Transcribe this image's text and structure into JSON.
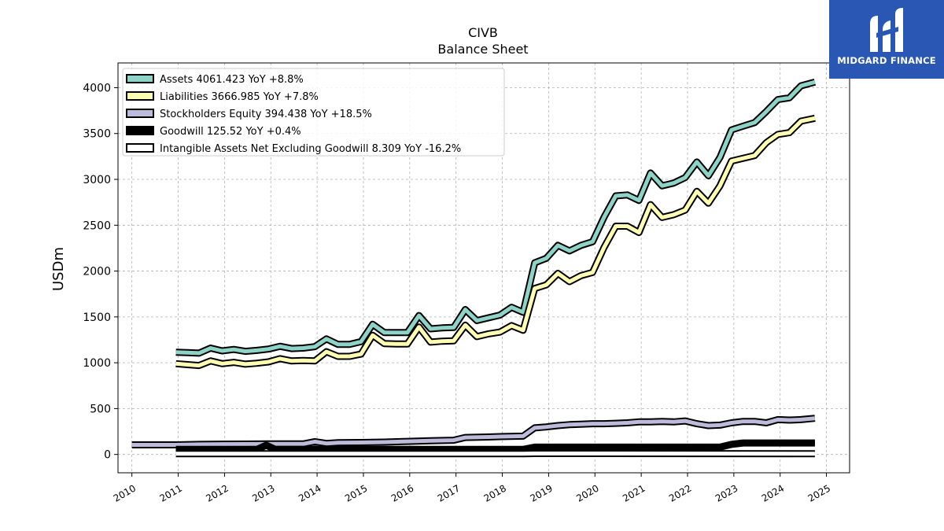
{
  "brand": {
    "name": "MIDGARD FINANCE",
    "bg_color": "#2a57b3",
    "icon": "midgard-logo-icon"
  },
  "chart_data": {
    "type": "line",
    "title": "CIVB",
    "subtitle": "Balance  Sheet",
    "ylabel": "USDm",
    "xlabel": "",
    "xlim": [
      2009.7,
      2025.5
    ],
    "ylim": [
      -200,
      4270
    ],
    "yticks": [
      0,
      500,
      1000,
      1500,
      2000,
      2500,
      3000,
      3500,
      4000
    ],
    "xticks": [
      "2010",
      "2011",
      "2012",
      "2013",
      "2014",
      "2015",
      "2016",
      "2017",
      "2018",
      "2019",
      "2020",
      "2021",
      "2022",
      "2023",
      "2024",
      "2025"
    ],
    "grid": true,
    "legend_position": "top-left",
    "series": [
      {
        "name": "Assets  4061.423 YoY +8.8%",
        "color": "#8dd3c7",
        "points": [
          [
            2010.95,
            1115
          ],
          [
            2011.2,
            1110
          ],
          [
            2011.45,
            1105
          ],
          [
            2011.7,
            1160
          ],
          [
            2011.95,
            1130
          ],
          [
            2012.2,
            1145
          ],
          [
            2012.45,
            1125
          ],
          [
            2012.7,
            1135
          ],
          [
            2012.95,
            1150
          ],
          [
            2013.2,
            1180
          ],
          [
            2013.45,
            1155
          ],
          [
            2013.7,
            1160
          ],
          [
            2013.95,
            1175
          ],
          [
            2014.2,
            1260
          ],
          [
            2014.45,
            1200
          ],
          [
            2014.7,
            1200
          ],
          [
            2014.95,
            1230
          ],
          [
            2015.2,
            1420
          ],
          [
            2015.45,
            1330
          ],
          [
            2015.7,
            1330
          ],
          [
            2015.95,
            1330
          ],
          [
            2016.2,
            1515
          ],
          [
            2016.45,
            1370
          ],
          [
            2016.7,
            1380
          ],
          [
            2016.95,
            1385
          ],
          [
            2017.2,
            1580
          ],
          [
            2017.45,
            1460
          ],
          [
            2017.7,
            1490
          ],
          [
            2017.95,
            1520
          ],
          [
            2018.2,
            1605
          ],
          [
            2018.45,
            1550
          ],
          [
            2018.7,
            2090
          ],
          [
            2018.95,
            2140
          ],
          [
            2019.2,
            2280
          ],
          [
            2019.45,
            2220
          ],
          [
            2019.7,
            2280
          ],
          [
            2019.95,
            2320
          ],
          [
            2020.2,
            2590
          ],
          [
            2020.45,
            2820
          ],
          [
            2020.7,
            2830
          ],
          [
            2020.95,
            2770
          ],
          [
            2021.2,
            3070
          ],
          [
            2021.45,
            2930
          ],
          [
            2021.7,
            2960
          ],
          [
            2021.95,
            3020
          ],
          [
            2022.2,
            3190
          ],
          [
            2022.45,
            3040
          ],
          [
            2022.7,
            3240
          ],
          [
            2022.95,
            3540
          ],
          [
            2023.2,
            3580
          ],
          [
            2023.45,
            3620
          ],
          [
            2023.7,
            3740
          ],
          [
            2023.95,
            3870
          ],
          [
            2024.2,
            3890
          ],
          [
            2024.45,
            4020
          ],
          [
            2024.75,
            4061.423
          ]
        ]
      },
      {
        "name": "Liabilities  3666.985 YoY +7.8%",
        "color": "#ffffb3",
        "points": [
          [
            2010.95,
            990
          ],
          [
            2011.2,
            980
          ],
          [
            2011.45,
            970
          ],
          [
            2011.7,
            1020
          ],
          [
            2011.95,
            990
          ],
          [
            2012.2,
            1005
          ],
          [
            2012.45,
            985
          ],
          [
            2012.7,
            995
          ],
          [
            2012.95,
            1010
          ],
          [
            2013.2,
            1045
          ],
          [
            2013.45,
            1020
          ],
          [
            2013.7,
            1025
          ],
          [
            2013.95,
            1020
          ],
          [
            2014.2,
            1120
          ],
          [
            2014.45,
            1070
          ],
          [
            2014.7,
            1070
          ],
          [
            2014.95,
            1095
          ],
          [
            2015.2,
            1300
          ],
          [
            2015.45,
            1210
          ],
          [
            2015.7,
            1205
          ],
          [
            2015.95,
            1205
          ],
          [
            2016.2,
            1390
          ],
          [
            2016.45,
            1225
          ],
          [
            2016.7,
            1235
          ],
          [
            2016.95,
            1240
          ],
          [
            2017.2,
            1410
          ],
          [
            2017.45,
            1285
          ],
          [
            2017.7,
            1315
          ],
          [
            2017.95,
            1335
          ],
          [
            2018.2,
            1405
          ],
          [
            2018.45,
            1355
          ],
          [
            2018.7,
            1810
          ],
          [
            2018.95,
            1850
          ],
          [
            2019.2,
            1975
          ],
          [
            2019.45,
            1885
          ],
          [
            2019.7,
            1950
          ],
          [
            2019.95,
            1985
          ],
          [
            2020.2,
            2260
          ],
          [
            2020.45,
            2490
          ],
          [
            2020.7,
            2490
          ],
          [
            2020.95,
            2420
          ],
          [
            2021.2,
            2725
          ],
          [
            2021.45,
            2585
          ],
          [
            2021.7,
            2615
          ],
          [
            2021.95,
            2665
          ],
          [
            2022.2,
            2870
          ],
          [
            2022.45,
            2740
          ],
          [
            2022.7,
            2930
          ],
          [
            2022.95,
            3200
          ],
          [
            2023.2,
            3230
          ],
          [
            2023.45,
            3260
          ],
          [
            2023.7,
            3400
          ],
          [
            2023.95,
            3490
          ],
          [
            2024.2,
            3510
          ],
          [
            2024.45,
            3635
          ],
          [
            2024.75,
            3666.985
          ]
        ]
      },
      {
        "name": "Stockholders Equity  394.438 YoY +18.5%",
        "color": "#bebada",
        "points": [
          [
            2010.0,
            105
          ],
          [
            2010.95,
            105
          ],
          [
            2011.45,
            110
          ],
          [
            2011.95,
            112
          ],
          [
            2012.45,
            113
          ],
          [
            2012.95,
            115
          ],
          [
            2013.45,
            115
          ],
          [
            2013.7,
            115
          ],
          [
            2013.95,
            140
          ],
          [
            2014.2,
            120
          ],
          [
            2014.45,
            128
          ],
          [
            2014.95,
            130
          ],
          [
            2015.45,
            135
          ],
          [
            2015.95,
            142
          ],
          [
            2016.45,
            150
          ],
          [
            2016.95,
            155
          ],
          [
            2017.2,
            185
          ],
          [
            2017.7,
            190
          ],
          [
            2017.95,
            195
          ],
          [
            2018.45,
            200
          ],
          [
            2018.7,
            290
          ],
          [
            2018.95,
            300
          ],
          [
            2019.2,
            315
          ],
          [
            2019.45,
            325
          ],
          [
            2019.7,
            330
          ],
          [
            2019.95,
            335
          ],
          [
            2020.2,
            335
          ],
          [
            2020.45,
            340
          ],
          [
            2020.7,
            345
          ],
          [
            2020.95,
            355
          ],
          [
            2021.2,
            355
          ],
          [
            2021.45,
            360
          ],
          [
            2021.7,
            355
          ],
          [
            2021.95,
            365
          ],
          [
            2022.2,
            335
          ],
          [
            2022.45,
            315
          ],
          [
            2022.7,
            320
          ],
          [
            2022.95,
            345
          ],
          [
            2023.2,
            360
          ],
          [
            2023.45,
            360
          ],
          [
            2023.7,
            345
          ],
          [
            2023.95,
            380
          ],
          [
            2024.2,
            375
          ],
          [
            2024.45,
            380
          ],
          [
            2024.75,
            394.438
          ]
        ]
      },
      {
        "name": "Goodwill  125.52 YoY +0.4%",
        "color": "#000000",
        "points": [
          [
            2010.95,
            55
          ],
          [
            2012.7,
            55
          ],
          [
            2012.9,
            100
          ],
          [
            2013.1,
            55
          ],
          [
            2018.45,
            55
          ],
          [
            2018.7,
            80
          ],
          [
            2022.7,
            80
          ],
          [
            2022.95,
            110
          ],
          [
            2023.2,
            125
          ],
          [
            2024.75,
            125.52
          ]
        ]
      },
      {
        "name": "Intangible Assets Net Excluding Goodwill  8.309 YoY -16.2%",
        "color": "#ffffff",
        "points": [
          [
            2010.95,
            8
          ],
          [
            2018.45,
            8
          ],
          [
            2018.7,
            10
          ],
          [
            2024.75,
            8.309
          ]
        ]
      }
    ]
  }
}
